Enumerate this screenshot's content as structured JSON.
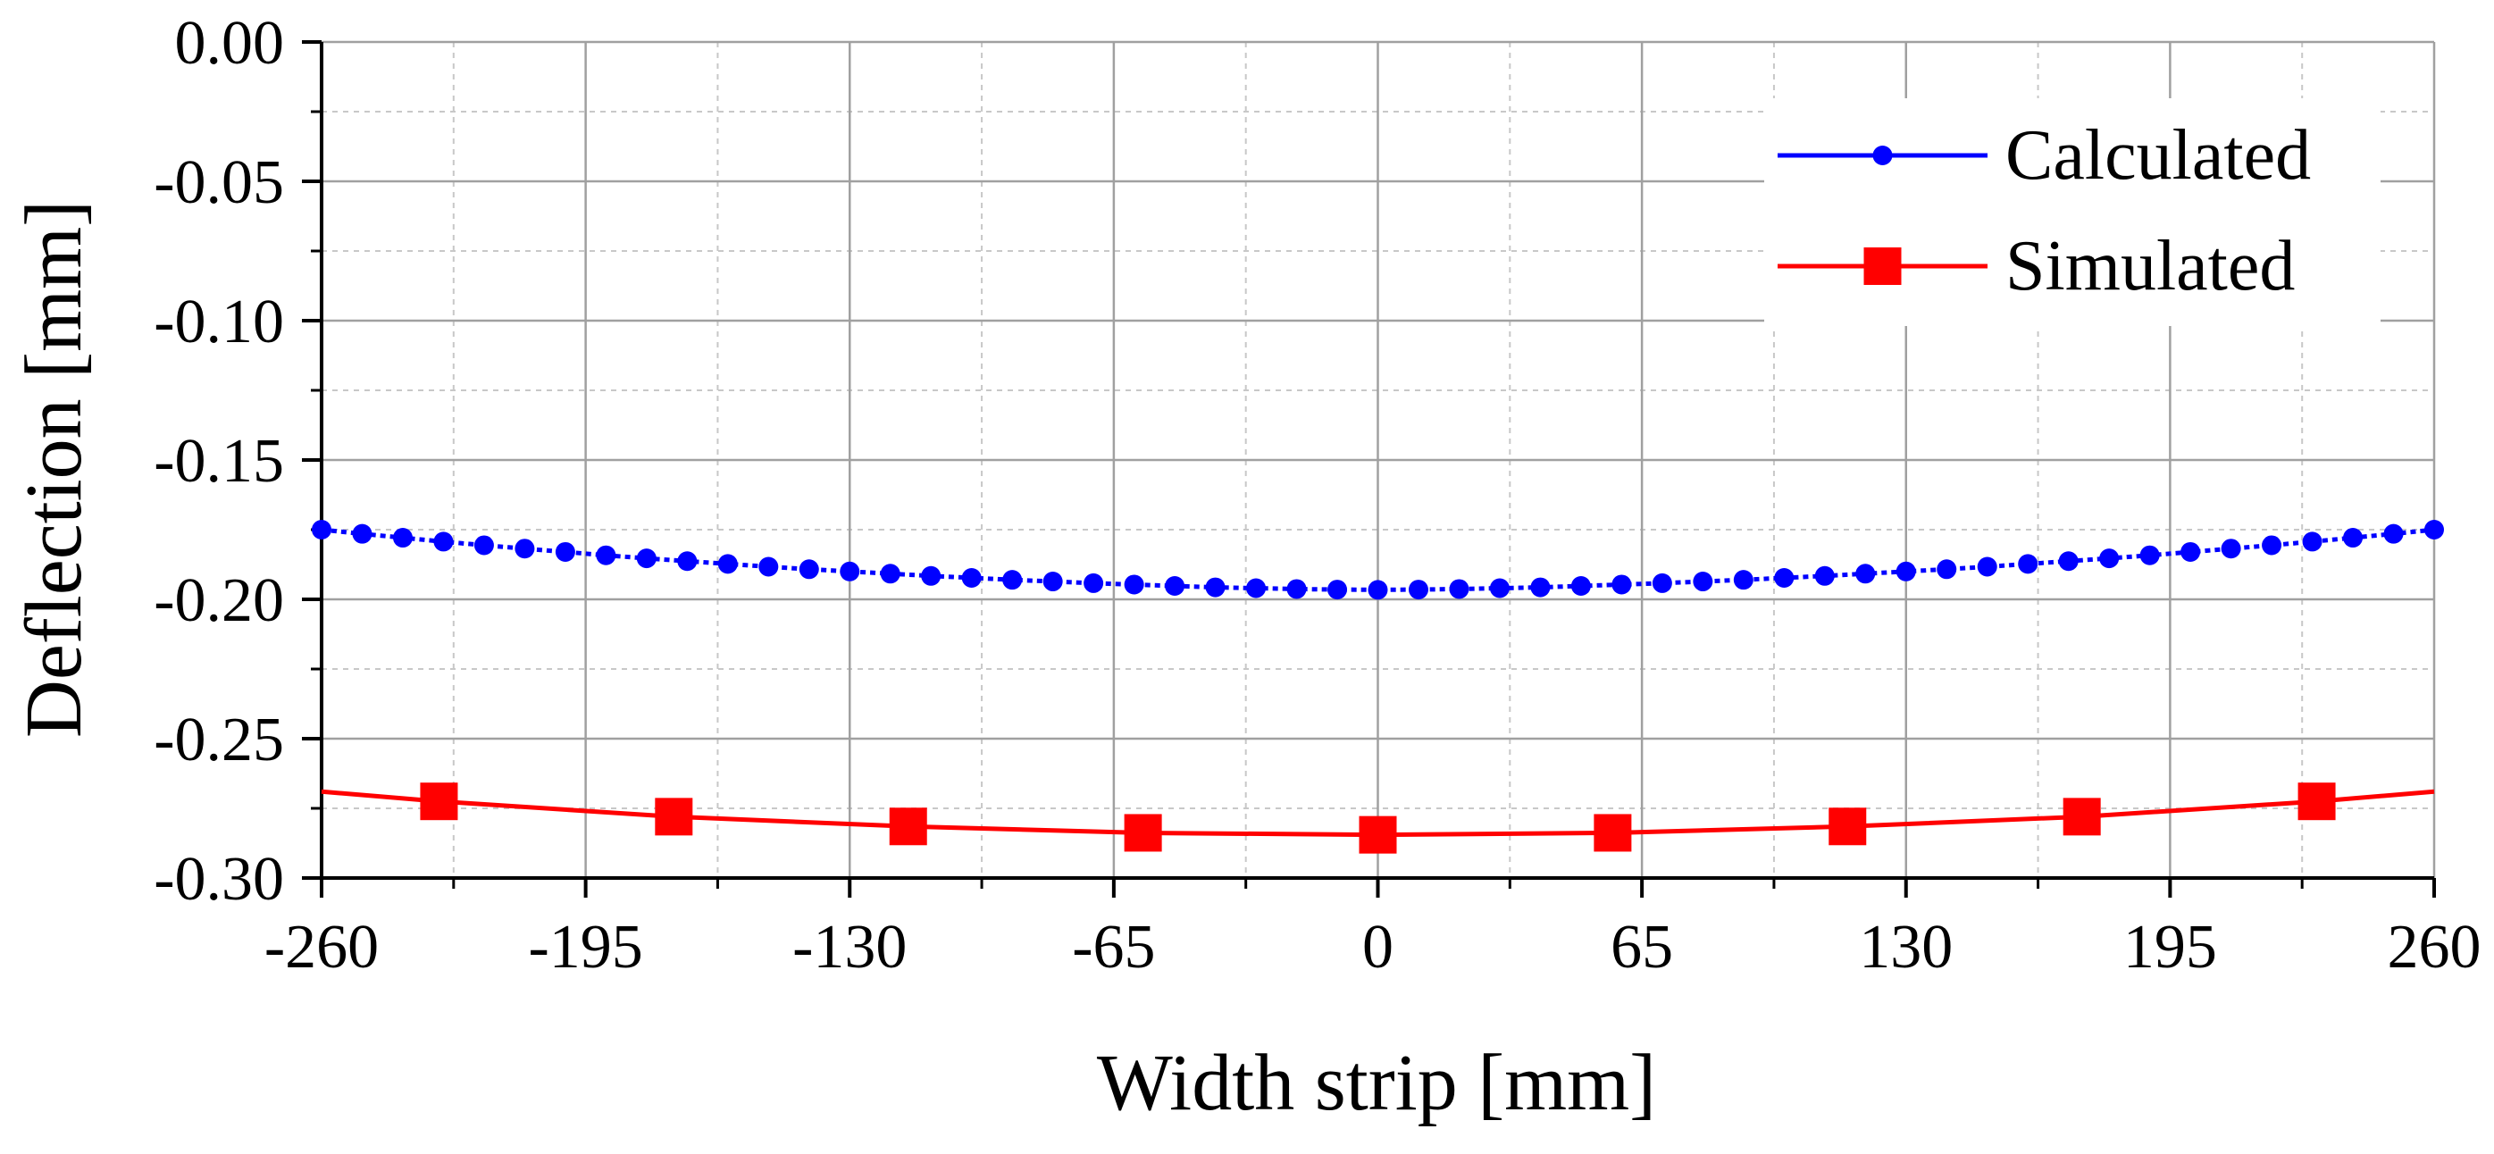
{
  "chart_data": {
    "type": "line",
    "xlabel": "Width strip [mm]",
    "ylabel": "Deflection [mm]",
    "xlim": [
      -260,
      260
    ],
    "ylim": [
      -0.3,
      0.0
    ],
    "xticks": [
      -260,
      -195,
      -130,
      -65,
      0,
      65,
      130,
      195,
      260
    ],
    "xtick_labels": [
      "-260",
      "-195",
      "-130",
      "-65",
      "0",
      "65",
      "130",
      "195",
      "260"
    ],
    "yticks": [
      0.0,
      -0.05,
      -0.1,
      -0.15,
      -0.2,
      -0.25,
      -0.3
    ],
    "ytick_labels": [
      "0.00",
      "-0.05",
      "-0.10",
      "-0.15",
      "-0.20",
      "-0.25",
      "-0.30"
    ],
    "grid": true,
    "legend_position": "top-right",
    "series": [
      {
        "name": "Calculated",
        "color": "#0000ff",
        "marker": "circle",
        "line_style": "dotted",
        "x": [
          -260,
          -250,
          -240,
          -230,
          -220,
          -210,
          -200,
          -190,
          -180,
          -170,
          -160,
          -150,
          -140,
          -130,
          -120,
          -110,
          -100,
          -90,
          -80,
          -70,
          -60,
          -50,
          -40,
          -30,
          -20,
          -10,
          0,
          10,
          20,
          30,
          40,
          50,
          60,
          70,
          80,
          90,
          100,
          110,
          120,
          130,
          140,
          150,
          160,
          170,
          180,
          190,
          200,
          210,
          220,
          230,
          240,
          250,
          260
        ],
        "y": [
          -0.175,
          -0.1765,
          -0.1779,
          -0.1793,
          -0.1806,
          -0.1818,
          -0.183,
          -0.1842,
          -0.1853,
          -0.1863,
          -0.1873,
          -0.1883,
          -0.1892,
          -0.19,
          -0.1908,
          -0.1916,
          -0.1923,
          -0.193,
          -0.1936,
          -0.1942,
          -0.1947,
          -0.1952,
          -0.1957,
          -0.196,
          -0.1963,
          -0.1965,
          -0.1966,
          -0.1965,
          -0.1963,
          -0.196,
          -0.1957,
          -0.1952,
          -0.1947,
          -0.1942,
          -0.1936,
          -0.193,
          -0.1923,
          -0.1916,
          -0.1908,
          -0.19,
          -0.1892,
          -0.1883,
          -0.1873,
          -0.1863,
          -0.1853,
          -0.1842,
          -0.183,
          -0.1818,
          -0.1806,
          -0.1793,
          -0.1779,
          -0.1765,
          -0.175
        ]
      },
      {
        "name": "Simulated",
        "color": "#ff0000",
        "marker": "square",
        "line_style": "solid",
        "x": [
          -260,
          -231.1,
          -173.3,
          -115.6,
          -57.8,
          0,
          57.8,
          115.6,
          173.3,
          231.1,
          260
        ],
        "y": [
          -0.269,
          -0.2725,
          -0.278,
          -0.2815,
          -0.2838,
          -0.2845,
          -0.2838,
          -0.2815,
          -0.278,
          -0.2725,
          -0.269
        ],
        "marker_indices": [
          1,
          2,
          3,
          4,
          5,
          6,
          7,
          8,
          9
        ]
      }
    ]
  }
}
